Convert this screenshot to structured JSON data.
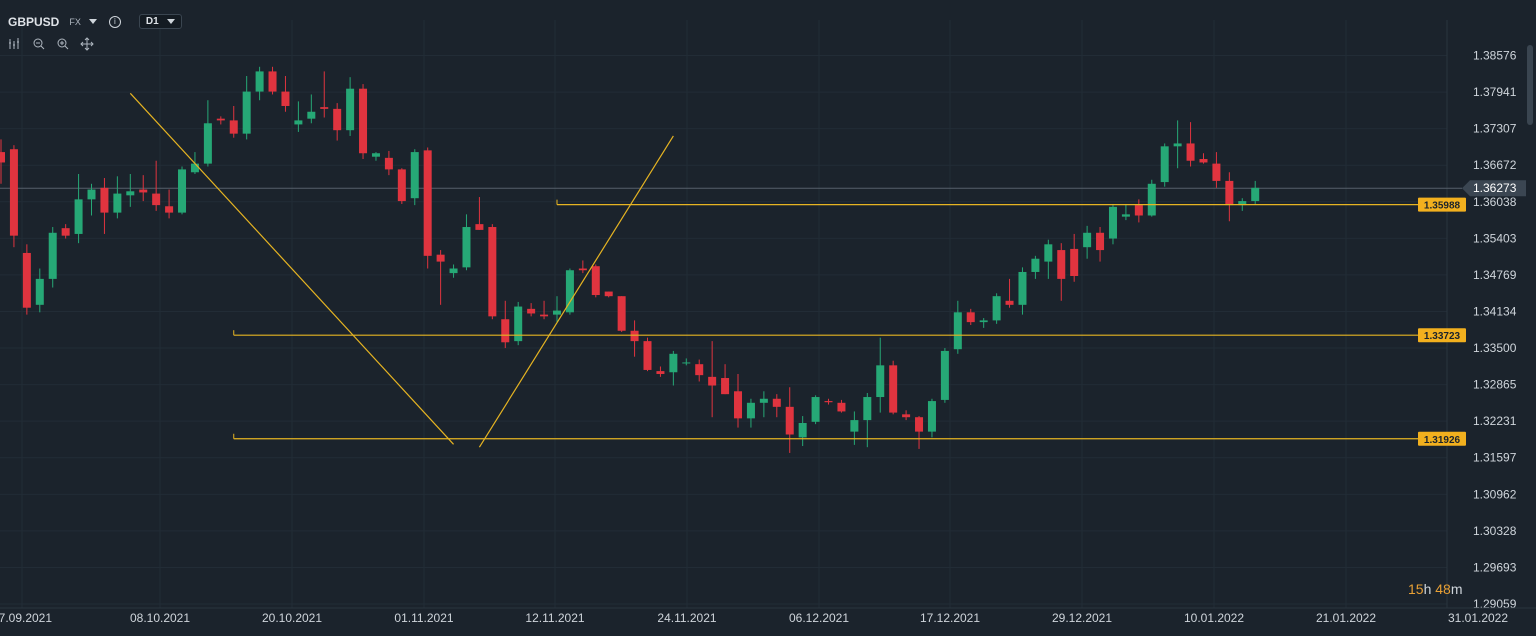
{
  "header": {
    "symbol": "GBPUSD",
    "market": "FX",
    "timeframe": "D1",
    "icons": [
      "chart-type-icon",
      "zoom-out-icon",
      "zoom-in-icon",
      "crosshair-move-icon"
    ]
  },
  "countdown": {
    "hours": "15",
    "h": "h",
    "minutes": "48",
    "m": "m"
  },
  "colors": {
    "up": "#26a876",
    "down": "#e0343f",
    "line": "#e6b422",
    "label_bg": "#f2b01e",
    "current_bg": "#3b4652",
    "grid": "#222c36",
    "text": "#cfd5db"
  },
  "chart_data": {
    "type": "candlestick",
    "x_tick_labels": [
      "27.09.2021",
      "08.10.2021",
      "20.10.2021",
      "01.11.2021",
      "12.11.2021",
      "24.11.2021",
      "06.12.2021",
      "17.12.2021",
      "29.12.2021",
      "10.01.2022",
      "21.01.2022",
      "31.01.2022"
    ],
    "y_tick_labels": [
      "1.38576",
      "1.37941",
      "1.37307",
      "1.36672",
      "1.36038",
      "1.35403",
      "1.34769",
      "1.34134",
      "1.33500",
      "1.32865",
      "1.32231",
      "1.31597",
      "1.30962",
      "1.30328",
      "1.29693",
      "1.29059"
    ],
    "ylim": [
      1.29059,
      1.38576
    ],
    "current_price": "1.36273",
    "horizontal_levels": [
      {
        "label": "1.35988",
        "from": 43,
        "value": 1.35988
      },
      {
        "label": "1.33723",
        "from": 18,
        "value": 1.33723
      },
      {
        "label": "1.31926",
        "from": 18,
        "value": 1.31926
      }
    ],
    "trend_lines": [
      {
        "from_index": 10,
        "from_value": 1.3792,
        "to_index": 35,
        "to_value": 1.3183
      },
      {
        "from_index": 37,
        "from_value": 1.3178,
        "to_index": 52,
        "to_value": 1.3718
      }
    ],
    "candles": [
      {
        "o": 1.369,
        "h": 1.3712,
        "l": 1.3635,
        "c": 1.3672
      },
      {
        "o": 1.3695,
        "h": 1.3702,
        "l": 1.3525,
        "c": 1.3545
      },
      {
        "o": 1.3515,
        "h": 1.353,
        "l": 1.3408,
        "c": 1.342
      },
      {
        "o": 1.3425,
        "h": 1.3488,
        "l": 1.3412,
        "c": 1.347
      },
      {
        "o": 1.347,
        "h": 1.356,
        "l": 1.3455,
        "c": 1.355
      },
      {
        "o": 1.3558,
        "h": 1.3565,
        "l": 1.354,
        "c": 1.3545
      },
      {
        "o": 1.3548,
        "h": 1.3652,
        "l": 1.3532,
        "c": 1.3608
      },
      {
        "o": 1.3608,
        "h": 1.3635,
        "l": 1.358,
        "c": 1.3625
      },
      {
        "o": 1.3628,
        "h": 1.3645,
        "l": 1.3548,
        "c": 1.3585
      },
      {
        "o": 1.3585,
        "h": 1.3648,
        "l": 1.3575,
        "c": 1.3618
      },
      {
        "o": 1.3615,
        "h": 1.3652,
        "l": 1.3595,
        "c": 1.3622
      },
      {
        "o": 1.3625,
        "h": 1.365,
        "l": 1.3605,
        "c": 1.362
      },
      {
        "o": 1.3618,
        "h": 1.3675,
        "l": 1.3588,
        "c": 1.3598
      },
      {
        "o": 1.3596,
        "h": 1.3625,
        "l": 1.3575,
        "c": 1.3585
      },
      {
        "o": 1.3585,
        "h": 1.3665,
        "l": 1.3582,
        "c": 1.366
      },
      {
        "o": 1.3655,
        "h": 1.369,
        "l": 1.3652,
        "c": 1.367
      },
      {
        "o": 1.367,
        "h": 1.378,
        "l": 1.3665,
        "c": 1.374
      },
      {
        "o": 1.3748,
        "h": 1.3752,
        "l": 1.3738,
        "c": 1.3745
      },
      {
        "o": 1.3745,
        "h": 1.377,
        "l": 1.3715,
        "c": 1.3722
      },
      {
        "o": 1.3722,
        "h": 1.3822,
        "l": 1.3712,
        "c": 1.3795
      },
      {
        "o": 1.3795,
        "h": 1.3838,
        "l": 1.378,
        "c": 1.383
      },
      {
        "o": 1.383,
        "h": 1.3838,
        "l": 1.379,
        "c": 1.3795
      },
      {
        "o": 1.3795,
        "h": 1.3822,
        "l": 1.376,
        "c": 1.377
      },
      {
        "o": 1.3738,
        "h": 1.3778,
        "l": 1.3725,
        "c": 1.3745
      },
      {
        "o": 1.3748,
        "h": 1.379,
        "l": 1.374,
        "c": 1.376
      },
      {
        "o": 1.3768,
        "h": 1.383,
        "l": 1.375,
        "c": 1.3765
      },
      {
        "o": 1.3765,
        "h": 1.3775,
        "l": 1.371,
        "c": 1.3728
      },
      {
        "o": 1.3728,
        "h": 1.382,
        "l": 1.3718,
        "c": 1.38
      },
      {
        "o": 1.38,
        "h": 1.3808,
        "l": 1.3678,
        "c": 1.3688
      },
      {
        "o": 1.3682,
        "h": 1.369,
        "l": 1.3675,
        "c": 1.3688
      },
      {
        "o": 1.368,
        "h": 1.3692,
        "l": 1.365,
        "c": 1.366
      },
      {
        "o": 1.366,
        "h": 1.3662,
        "l": 1.36,
        "c": 1.3605
      },
      {
        "o": 1.361,
        "h": 1.3695,
        "l": 1.3598,
        "c": 1.369
      },
      {
        "o": 1.3693,
        "h": 1.3698,
        "l": 1.3488,
        "c": 1.351
      },
      {
        "o": 1.3512,
        "h": 1.352,
        "l": 1.3425,
        "c": 1.35
      },
      {
        "o": 1.348,
        "h": 1.3495,
        "l": 1.3472,
        "c": 1.3488
      },
      {
        "o": 1.349,
        "h": 1.3582,
        "l": 1.3485,
        "c": 1.356
      },
      {
        "o": 1.3565,
        "h": 1.3612,
        "l": 1.3555,
        "c": 1.3555
      },
      {
        "o": 1.356,
        "h": 1.3565,
        "l": 1.34,
        "c": 1.3405
      },
      {
        "o": 1.34,
        "h": 1.3432,
        "l": 1.335,
        "c": 1.336
      },
      {
        "o": 1.3362,
        "h": 1.343,
        "l": 1.3355,
        "c": 1.3422
      },
      {
        "o": 1.3418,
        "h": 1.3428,
        "l": 1.3405,
        "c": 1.341
      },
      {
        "o": 1.3408,
        "h": 1.3432,
        "l": 1.34,
        "c": 1.3405
      },
      {
        "o": 1.3408,
        "h": 1.344,
        "l": 1.3395,
        "c": 1.3415
      },
      {
        "o": 1.3412,
        "h": 1.3488,
        "l": 1.3408,
        "c": 1.3485
      },
      {
        "o": 1.3488,
        "h": 1.3502,
        "l": 1.348,
        "c": 1.3485
      },
      {
        "o": 1.3492,
        "h": 1.3495,
        "l": 1.3438,
        "c": 1.3442
      },
      {
        "o": 1.3448,
        "h": 1.3448,
        "l": 1.3438,
        "c": 1.344
      },
      {
        "o": 1.344,
        "h": 1.344,
        "l": 1.3378,
        "c": 1.338
      },
      {
        "o": 1.338,
        "h": 1.3398,
        "l": 1.3335,
        "c": 1.3362
      },
      {
        "o": 1.3362,
        "h": 1.3368,
        "l": 1.331,
        "c": 1.3312
      },
      {
        "o": 1.331,
        "h": 1.3318,
        "l": 1.33,
        "c": 1.3305
      },
      {
        "o": 1.3308,
        "h": 1.3345,
        "l": 1.3285,
        "c": 1.334
      },
      {
        "o": 1.3325,
        "h": 1.3332,
        "l": 1.332,
        "c": 1.3325
      },
      {
        "o": 1.3322,
        "h": 1.333,
        "l": 1.3292,
        "c": 1.3303
      },
      {
        "o": 1.33,
        "h": 1.3362,
        "l": 1.323,
        "c": 1.3285
      },
      {
        "o": 1.3298,
        "h": 1.3322,
        "l": 1.327,
        "c": 1.327
      },
      {
        "o": 1.3275,
        "h": 1.3305,
        "l": 1.3212,
        "c": 1.3228
      },
      {
        "o": 1.3228,
        "h": 1.3262,
        "l": 1.3212,
        "c": 1.3255
      },
      {
        "o": 1.3255,
        "h": 1.3275,
        "l": 1.323,
        "c": 1.3262
      },
      {
        "o": 1.3262,
        "h": 1.327,
        "l": 1.323,
        "c": 1.3248
      },
      {
        "o": 1.3248,
        "h": 1.3282,
        "l": 1.3168,
        "c": 1.32
      },
      {
        "o": 1.3195,
        "h": 1.3232,
        "l": 1.318,
        "c": 1.322
      },
      {
        "o": 1.3222,
        "h": 1.3268,
        "l": 1.3218,
        "c": 1.3265
      },
      {
        "o": 1.3258,
        "h": 1.3262,
        "l": 1.3252,
        "c": 1.3256
      },
      {
        "o": 1.3255,
        "h": 1.326,
        "l": 1.3238,
        "c": 1.324
      },
      {
        "o": 1.3205,
        "h": 1.324,
        "l": 1.3182,
        "c": 1.3225
      },
      {
        "o": 1.3225,
        "h": 1.3272,
        "l": 1.3178,
        "c": 1.3265
      },
      {
        "o": 1.3265,
        "h": 1.3368,
        "l": 1.3238,
        "c": 1.332
      },
      {
        "o": 1.332,
        "h": 1.3328,
        "l": 1.3235,
        "c": 1.3238
      },
      {
        "o": 1.3235,
        "h": 1.3242,
        "l": 1.3225,
        "c": 1.323
      },
      {
        "o": 1.323,
        "h": 1.3232,
        "l": 1.3175,
        "c": 1.3205
      },
      {
        "o": 1.3205,
        "h": 1.3262,
        "l": 1.3195,
        "c": 1.3258
      },
      {
        "o": 1.326,
        "h": 1.335,
        "l": 1.3255,
        "c": 1.3345
      },
      {
        "o": 1.3348,
        "h": 1.3432,
        "l": 1.334,
        "c": 1.3412
      },
      {
        "o": 1.3412,
        "h": 1.3418,
        "l": 1.339,
        "c": 1.3395
      },
      {
        "o": 1.3395,
        "h": 1.3402,
        "l": 1.3385,
        "c": 1.3398
      },
      {
        "o": 1.3398,
        "h": 1.3445,
        "l": 1.3392,
        "c": 1.344
      },
      {
        "o": 1.3432,
        "h": 1.347,
        "l": 1.342,
        "c": 1.3425
      },
      {
        "o": 1.3425,
        "h": 1.349,
        "l": 1.3408,
        "c": 1.3482
      },
      {
        "o": 1.3482,
        "h": 1.351,
        "l": 1.347,
        "c": 1.3505
      },
      {
        "o": 1.35,
        "h": 1.3538,
        "l": 1.347,
        "c": 1.353
      },
      {
        "o": 1.352,
        "h": 1.3532,
        "l": 1.3432,
        "c": 1.347
      },
      {
        "o": 1.3522,
        "h": 1.3548,
        "l": 1.3465,
        "c": 1.3475
      },
      {
        "o": 1.3525,
        "h": 1.3562,
        "l": 1.3505,
        "c": 1.355
      },
      {
        "o": 1.355,
        "h": 1.356,
        "l": 1.35,
        "c": 1.352
      },
      {
        "o": 1.354,
        "h": 1.36,
        "l": 1.353,
        "c": 1.3595
      },
      {
        "o": 1.3578,
        "h": 1.36,
        "l": 1.3572,
        "c": 1.3582
      },
      {
        "o": 1.3598,
        "h": 1.3608,
        "l": 1.3568,
        "c": 1.358
      },
      {
        "o": 1.358,
        "h": 1.3642,
        "l": 1.3578,
        "c": 1.3635
      },
      {
        "o": 1.3638,
        "h": 1.3705,
        "l": 1.363,
        "c": 1.37
      },
      {
        "o": 1.37,
        "h": 1.3745,
        "l": 1.3662,
        "c": 1.3705
      },
      {
        "o": 1.3705,
        "h": 1.3742,
        "l": 1.3665,
        "c": 1.3675
      },
      {
        "o": 1.3678,
        "h": 1.3688,
        "l": 1.367,
        "c": 1.3672
      },
      {
        "o": 1.367,
        "h": 1.369,
        "l": 1.3628,
        "c": 1.364
      },
      {
        "o": 1.364,
        "h": 1.3655,
        "l": 1.357,
        "c": 1.3598
      },
      {
        "o": 1.3598,
        "h": 1.361,
        "l": 1.3588,
        "c": 1.3605
      },
      {
        "o": 1.3605,
        "h": 1.364,
        "l": 1.36,
        "c": 1.3628
      }
    ]
  }
}
